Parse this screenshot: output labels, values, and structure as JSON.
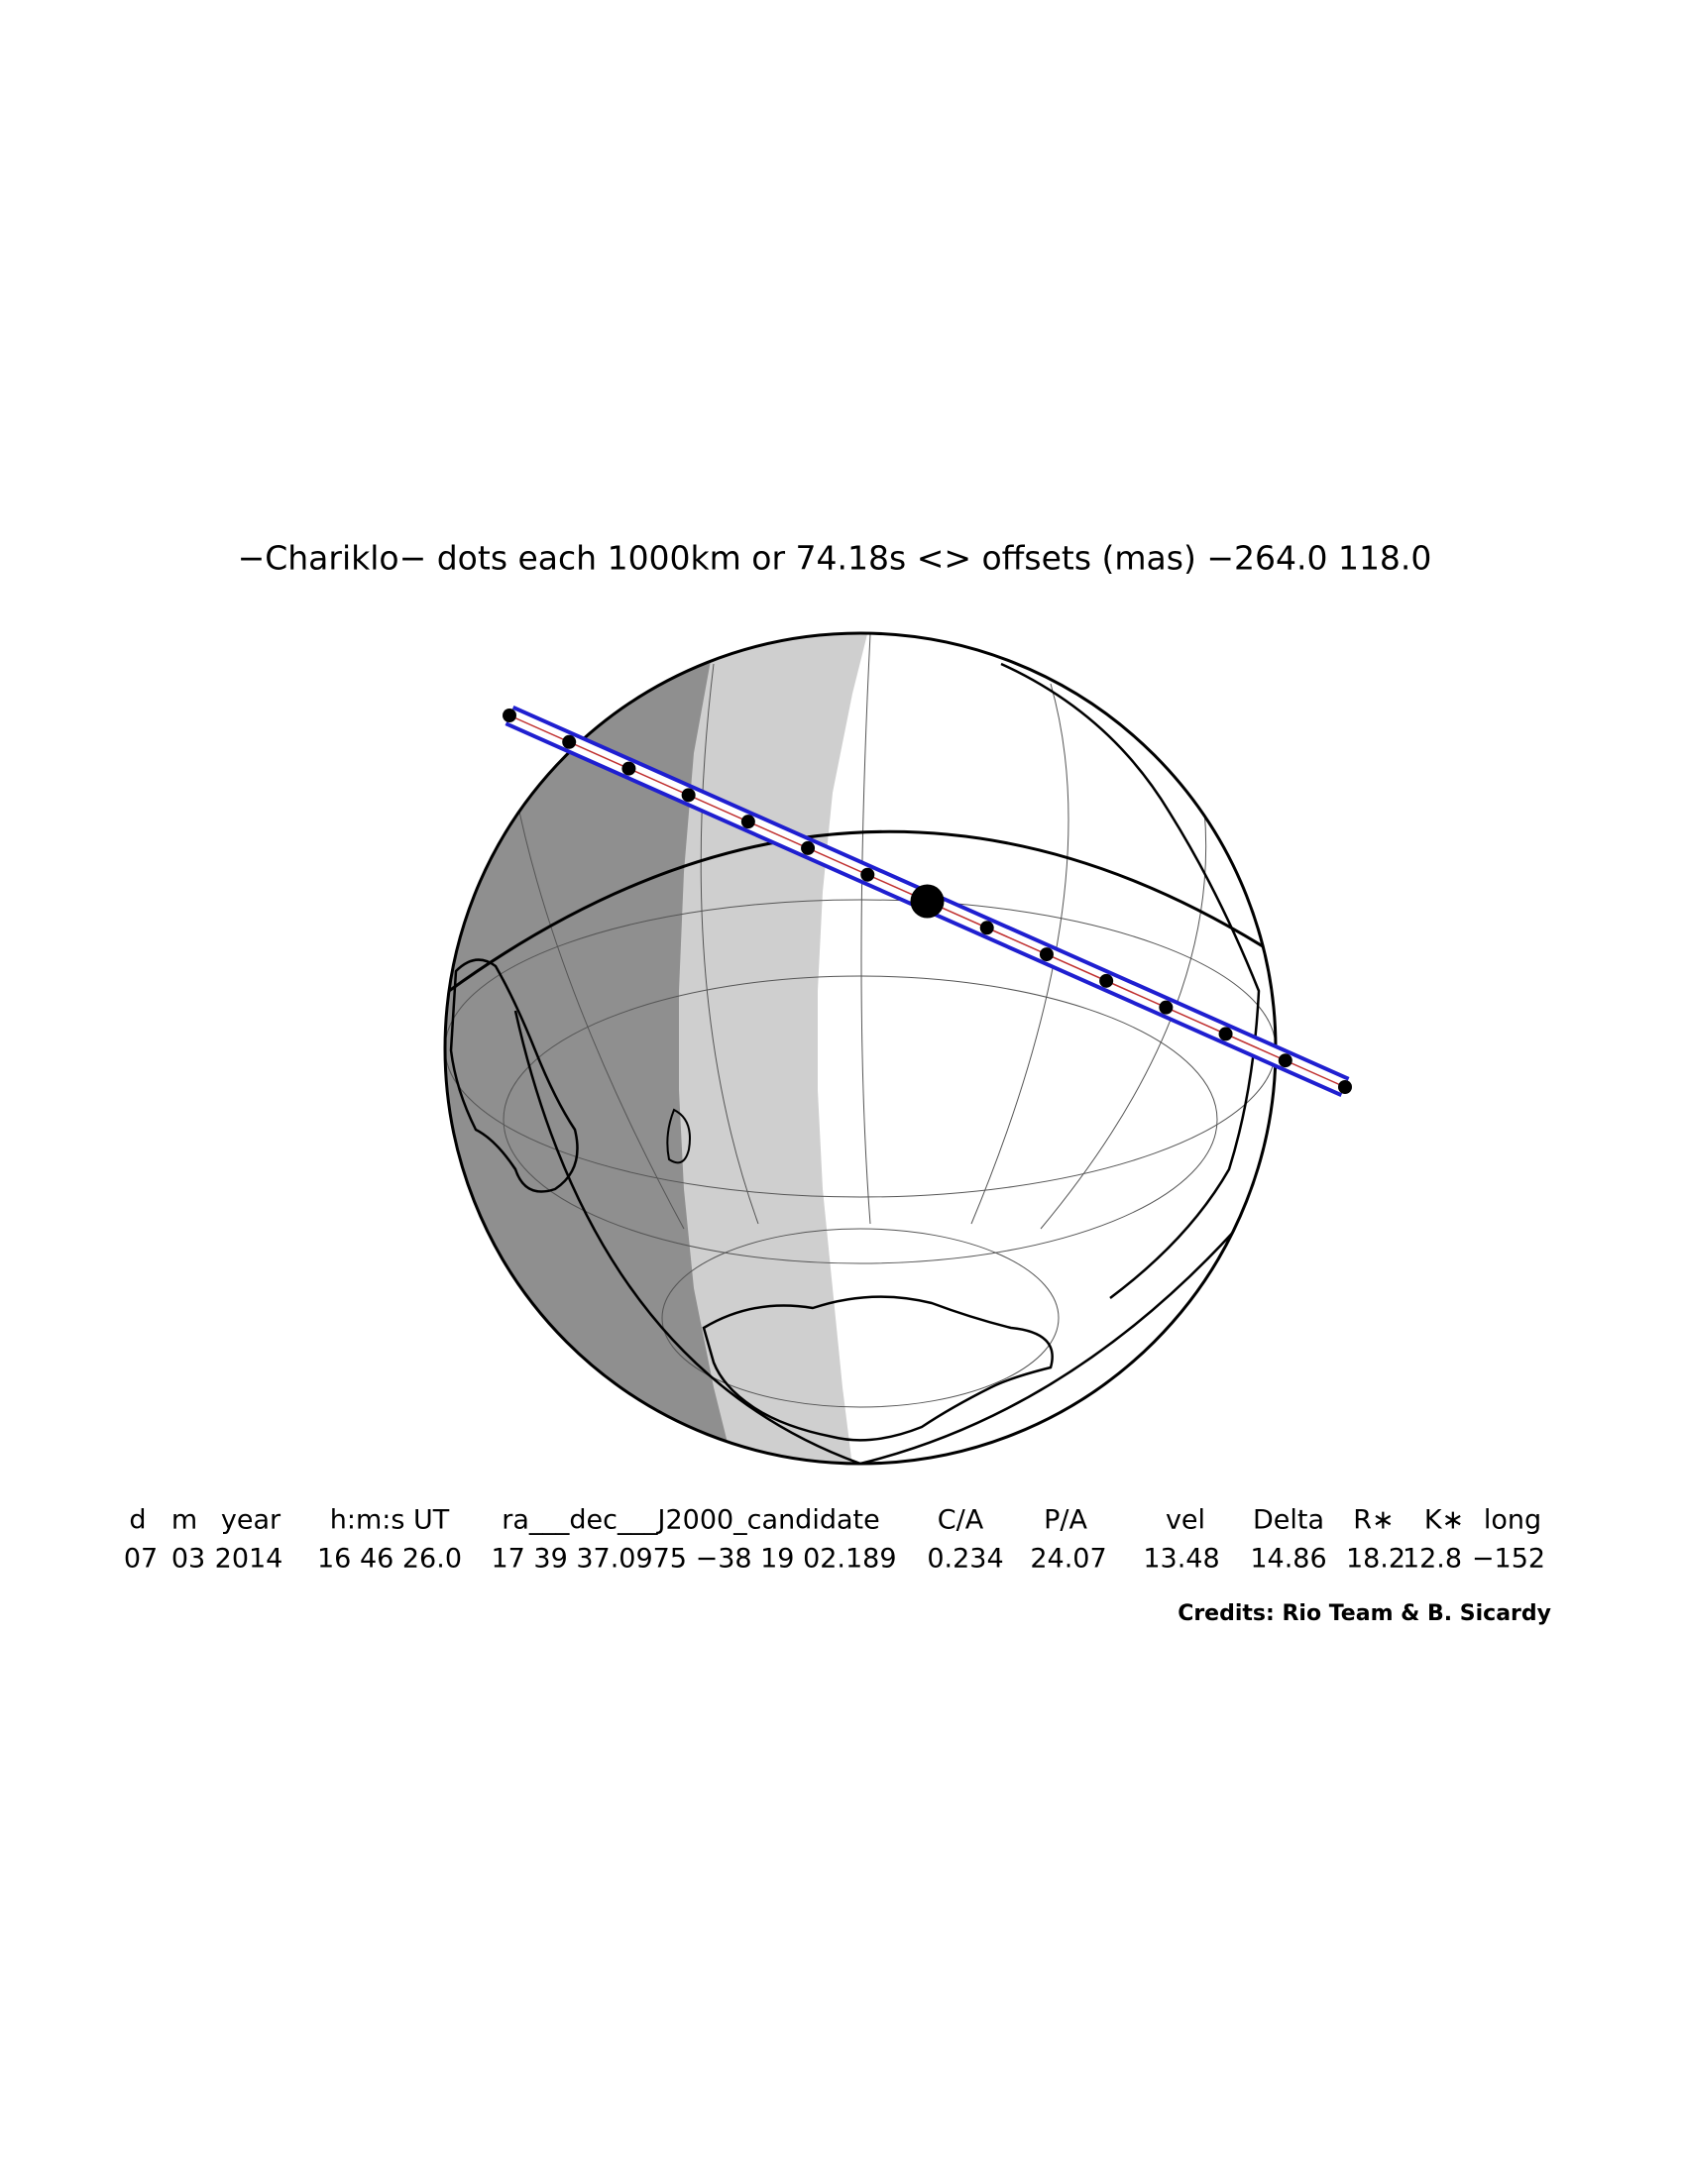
{
  "title": "−Chariklo− dots each 1000km or 74.18s <> offsets (mas) −264.0  118.0",
  "table": {
    "headers": [
      "d",
      "m",
      "year",
      "h:m:s UT",
      "ra___dec___J2000_candidate",
      "C/A",
      "P/A",
      "vel",
      "Delta",
      "R∗",
      "K∗",
      "long"
    ],
    "values": [
      "07",
      "03",
      "2014",
      "16 46 26.0",
      "17 39 37.0975 −38 19 02.189",
      "0.234",
      "24.07",
      "13.48",
      "14.86",
      "18.2",
      "12.8",
      "−152"
    ]
  },
  "credits": "Credits: Rio Team & B. Sicardy"
}
